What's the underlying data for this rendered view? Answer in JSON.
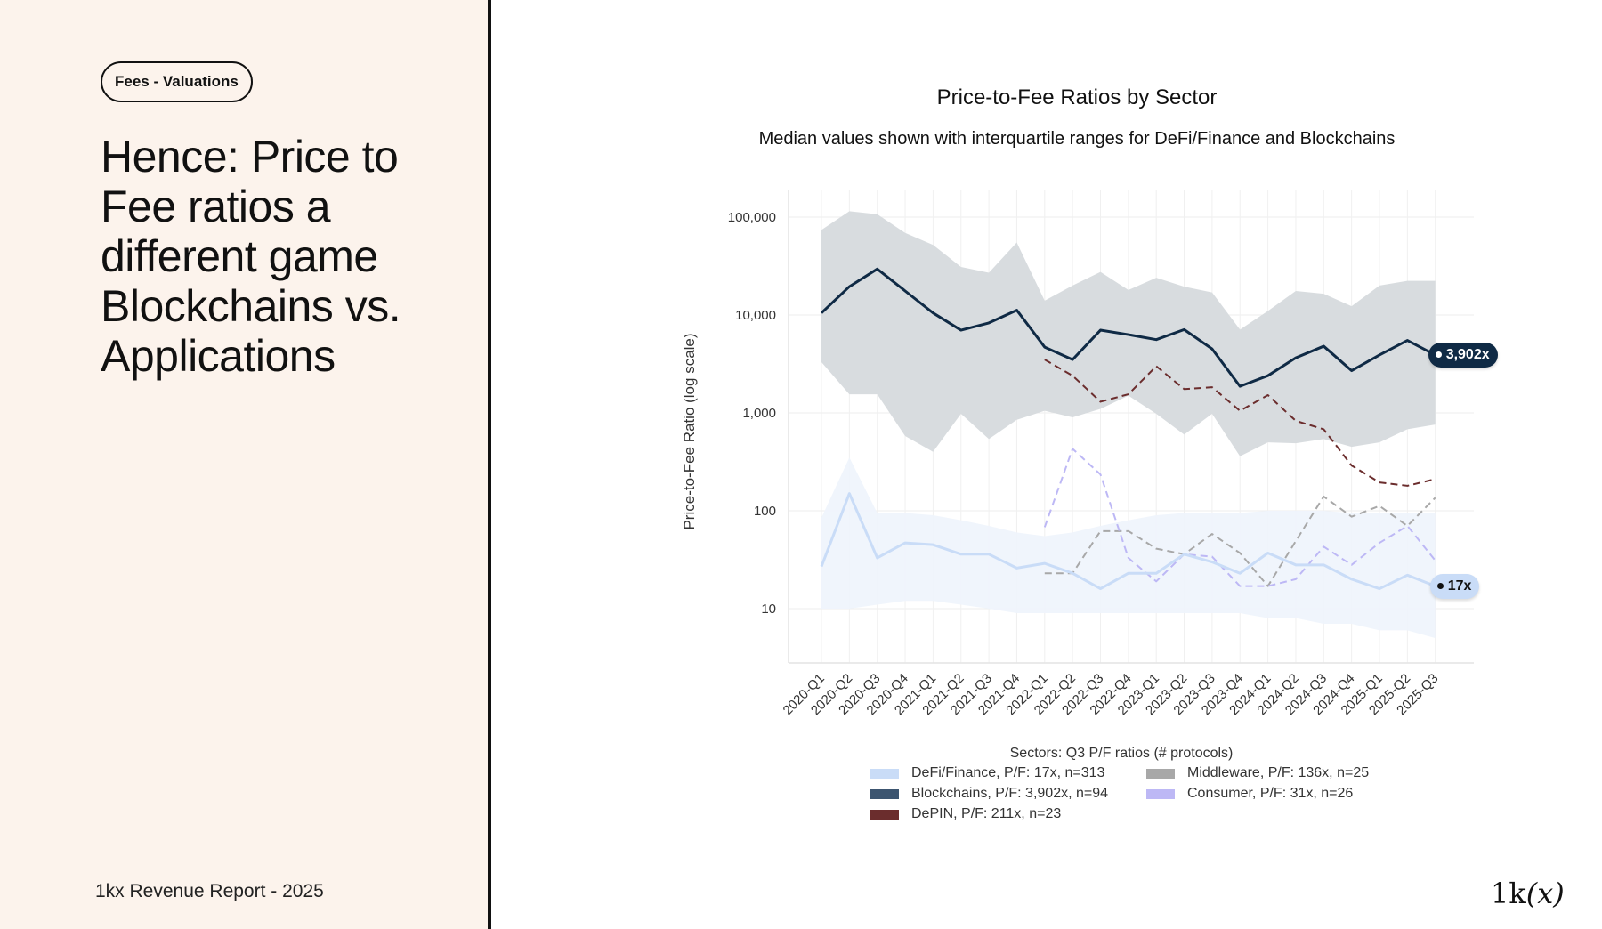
{
  "slide": {
    "tag": "Fees - Valuations",
    "headline": "Hence: Price to Fee ratios a different game Blockchains vs. Applications",
    "footer": "1kx Revenue Report  - 2025",
    "logo_main": "1k",
    "logo_paren": "(x)"
  },
  "colors": {
    "left_panel_bg": "#fcf3ec",
    "defi": "#c9dcf7",
    "blockchains": "#0f2a45",
    "depin": "#6b2d2d",
    "middleware": "#a8a8a8",
    "consumer": "#bdb8f5",
    "blockchain_band": "#d6dadd",
    "defi_band": "#eef4fc"
  },
  "chart_data": {
    "type": "line",
    "title": "Price-to-Fee Ratios by Sector",
    "subtitle": "Median values shown with interquartile ranges for DeFi/Finance and Blockchains",
    "xlabel": "",
    "ylabel": "Price-to-Fee Ratio (log scale)",
    "yscale": "log",
    "ylim": [
      2.5,
      200000
    ],
    "yticks": [
      {
        "value": 10,
        "label": "10"
      },
      {
        "value": 100,
        "label": "100"
      },
      {
        "value": 1000,
        "label": "1,000"
      },
      {
        "value": 10000,
        "label": "10,000"
      },
      {
        "value": 100000,
        "label": "100,000"
      }
    ],
    "grid": true,
    "categories": [
      "2020-Q1",
      "2020-Q2",
      "2020-Q3",
      "2020-Q4",
      "2021-Q1",
      "2021-Q2",
      "2021-Q3",
      "2021-Q4",
      "2022-Q1",
      "2022-Q2",
      "2022-Q3",
      "2022-Q4",
      "2023-Q1",
      "2023-Q2",
      "2023-Q3",
      "2023-Q4",
      "2024-Q1",
      "2024-Q2",
      "2024-Q3",
      "2024-Q4",
      "2025-Q1",
      "2025-Q2",
      "2025-Q3"
    ],
    "legend_title": "Sectors: Q3 P/F ratios (# protocols)",
    "legend_position": "bottom",
    "series": [
      {
        "name": "DeFi/Finance",
        "legend_label": "DeFi/Finance, P/F: 17x, n=313",
        "color_key": "defi",
        "style": "solid",
        "end_label": "17x",
        "values": [
          27,
          150,
          33,
          47,
          45,
          36,
          36,
          26,
          29,
          23,
          16,
          23,
          23,
          36,
          30,
          23,
          37,
          28,
          28,
          20,
          16,
          22,
          17
        ],
        "iqr_low": [
          10,
          10,
          11,
          12,
          12,
          11,
          10,
          9,
          9,
          9,
          9,
          9,
          9,
          9,
          9,
          9,
          8,
          8,
          7,
          7,
          6,
          6,
          5
        ],
        "iqr_high": [
          85,
          350,
          95,
          95,
          90,
          80,
          70,
          60,
          55,
          60,
          70,
          80,
          90,
          95,
          95,
          95,
          100,
          100,
          100,
          95,
          95,
          95,
          95
        ]
      },
      {
        "name": "Blockchains",
        "legend_label": "Blockchains, P/F: 3,902x, n=94",
        "color_key": "blockchains",
        "style": "solid",
        "end_label": "3,902x",
        "values": [
          10500,
          19500,
          29500,
          17600,
          10500,
          7000,
          8300,
          11200,
          4700,
          3500,
          7000,
          6300,
          5600,
          7100,
          4500,
          1870,
          2400,
          3650,
          4800,
          2700,
          3900,
          5500,
          3902
        ],
        "iqr_low": [
          3300,
          1550,
          1550,
          580,
          400,
          980,
          540,
          850,
          1050,
          900,
          1100,
          1500,
          980,
          600,
          980,
          360,
          500,
          490,
          540,
          450,
          500,
          680,
          760
        ],
        "iqr_high": [
          74000,
          115000,
          107000,
          69000,
          52000,
          31000,
          27000,
          55000,
          14000,
          20000,
          27500,
          18000,
          24000,
          19500,
          17000,
          7100,
          11000,
          17600,
          16500,
          12300,
          20000,
          22300,
          22300
        ]
      },
      {
        "name": "DePIN",
        "legend_label": "DePIN, P/F: 211x, n=23",
        "color_key": "depin",
        "style": "dashed",
        "values": [
          null,
          null,
          null,
          null,
          null,
          null,
          null,
          null,
          3500,
          2400,
          1300,
          1550,
          3000,
          1750,
          1830,
          1050,
          1520,
          830,
          680,
          290,
          195,
          180,
          211
        ]
      },
      {
        "name": "Middleware",
        "legend_label": "Middleware, P/F: 136x, n=25",
        "color_key": "middleware",
        "style": "dashed",
        "values": [
          null,
          null,
          null,
          null,
          null,
          null,
          null,
          null,
          23,
          23,
          62,
          62,
          41,
          36,
          58,
          37,
          17,
          49,
          140,
          87,
          112,
          70,
          136
        ]
      },
      {
        "name": "Consumer",
        "legend_label": "Consumer, P/F: 31x, n=26",
        "color_key": "consumer",
        "style": "dashed",
        "values": [
          null,
          null,
          null,
          null,
          null,
          null,
          null,
          null,
          68,
          430,
          235,
          33,
          19,
          36,
          34,
          17,
          17,
          20,
          43,
          28,
          47,
          70,
          31
        ]
      }
    ]
  }
}
